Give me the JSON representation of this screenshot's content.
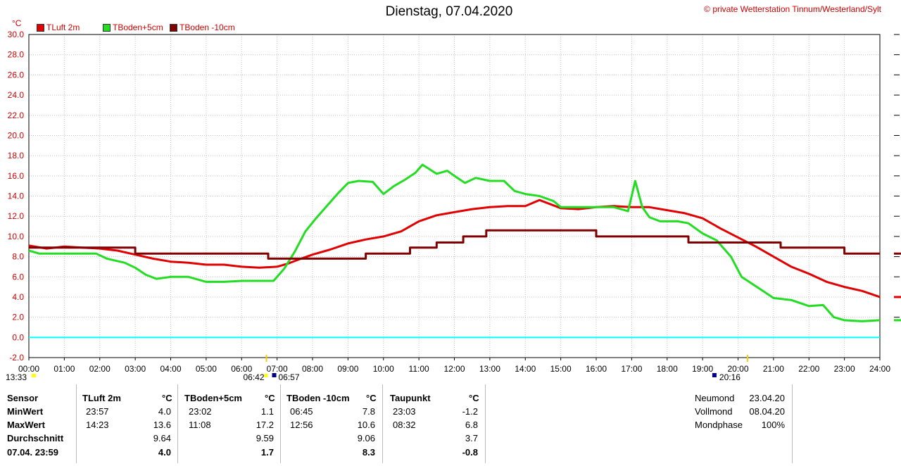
{
  "header": {
    "title": "Dienstag, 07.04.2020",
    "copyright": "© private Wetterstation Tinnum/Westerland/Sylt",
    "unit": "°C"
  },
  "colors": {
    "tluft": "#e00000",
    "tboden5": "#22dd22",
    "tboden10": "#800000",
    "zero_line": "#00ffff",
    "grid": "#c0c0c0"
  },
  "chart_data": {
    "type": "line",
    "ylim": [
      -2,
      30
    ],
    "yticks": [
      "-2.0",
      "0.0",
      "2.0",
      "4.0",
      "6.0",
      "8.0",
      "10.0",
      "12.0",
      "14.0",
      "16.0",
      "18.0",
      "20.0",
      "22.0",
      "24.0",
      "26.0",
      "28.0",
      "30.0"
    ],
    "xlim": [
      0,
      24
    ],
    "xticks": [
      "00:00",
      "01:00",
      "02:00",
      "03:00",
      "04:00",
      "05:00",
      "06:00",
      "07:00",
      "08:00",
      "09:00",
      "10:00",
      "11:00",
      "12:00",
      "13:00",
      "14:00",
      "15:00",
      "16:00",
      "17:00",
      "18:00",
      "19:00",
      "20:00",
      "21:00",
      "22:00",
      "23:00",
      "24:00"
    ],
    "grid": true,
    "legend_position": "top-left",
    "series": [
      {
        "name": "TLuft 2m",
        "color": "#e00000",
        "points": [
          [
            0,
            9.1
          ],
          [
            0.5,
            8.8
          ],
          [
            1,
            9.0
          ],
          [
            1.5,
            8.9
          ],
          [
            2,
            8.8
          ],
          [
            2.5,
            8.6
          ],
          [
            3,
            8.2
          ],
          [
            3.5,
            7.8
          ],
          [
            4,
            7.5
          ],
          [
            4.5,
            7.4
          ],
          [
            5,
            7.2
          ],
          [
            5.5,
            7.2
          ],
          [
            6,
            7.0
          ],
          [
            6.5,
            6.9
          ],
          [
            7,
            7.0
          ],
          [
            7.3,
            7.3
          ],
          [
            7.6,
            7.7
          ],
          [
            8,
            8.2
          ],
          [
            8.5,
            8.7
          ],
          [
            9,
            9.3
          ],
          [
            9.5,
            9.7
          ],
          [
            10,
            10.0
          ],
          [
            10.5,
            10.5
          ],
          [
            11,
            11.5
          ],
          [
            11.5,
            12.1
          ],
          [
            12,
            12.4
          ],
          [
            12.5,
            12.7
          ],
          [
            13,
            12.9
          ],
          [
            13.5,
            13.0
          ],
          [
            14,
            13.0
          ],
          [
            14.4,
            13.6
          ],
          [
            15,
            12.8
          ],
          [
            15.5,
            12.7
          ],
          [
            16,
            12.9
          ],
          [
            16.5,
            13.0
          ],
          [
            17,
            12.9
          ],
          [
            17.5,
            12.9
          ],
          [
            18,
            12.6
          ],
          [
            18.5,
            12.3
          ],
          [
            19,
            11.8
          ],
          [
            19.5,
            10.8
          ],
          [
            20,
            9.9
          ],
          [
            20.5,
            9.0
          ],
          [
            21,
            8.0
          ],
          [
            21.5,
            7.0
          ],
          [
            22,
            6.3
          ],
          [
            22.5,
            5.5
          ],
          [
            23,
            5.0
          ],
          [
            23.5,
            4.6
          ],
          [
            24,
            4.0
          ]
        ]
      },
      {
        "name": "TBoden+5cm",
        "color": "#22dd22",
        "points": [
          [
            0,
            8.6
          ],
          [
            0.3,
            8.3
          ],
          [
            1,
            8.3
          ],
          [
            1.9,
            8.3
          ],
          [
            2.2,
            7.8
          ],
          [
            2.7,
            7.4
          ],
          [
            3,
            6.9
          ],
          [
            3.3,
            6.2
          ],
          [
            3.6,
            5.8
          ],
          [
            4,
            6.0
          ],
          [
            4.5,
            6.0
          ],
          [
            5,
            5.5
          ],
          [
            5.5,
            5.5
          ],
          [
            6,
            5.6
          ],
          [
            6.5,
            5.6
          ],
          [
            6.9,
            5.6
          ],
          [
            7.2,
            6.8
          ],
          [
            7.5,
            8.5
          ],
          [
            7.8,
            10.5
          ],
          [
            8.1,
            11.8
          ],
          [
            8.4,
            13.0
          ],
          [
            8.7,
            14.2
          ],
          [
            9,
            15.3
          ],
          [
            9.3,
            15.5
          ],
          [
            9.7,
            15.4
          ],
          [
            10,
            14.2
          ],
          [
            10.3,
            15.0
          ],
          [
            10.6,
            15.6
          ],
          [
            10.9,
            16.3
          ],
          [
            11.1,
            17.1
          ],
          [
            11.5,
            16.2
          ],
          [
            11.8,
            16.5
          ],
          [
            12,
            16.0
          ],
          [
            12.3,
            15.3
          ],
          [
            12.6,
            15.8
          ],
          [
            13,
            15.5
          ],
          [
            13.4,
            15.5
          ],
          [
            13.7,
            14.5
          ],
          [
            14,
            14.2
          ],
          [
            14.4,
            14.0
          ],
          [
            14.8,
            13.5
          ],
          [
            15,
            12.9
          ],
          [
            15.5,
            12.9
          ],
          [
            16,
            12.9
          ],
          [
            16.5,
            12.9
          ],
          [
            16.9,
            12.5
          ],
          [
            17.1,
            15.5
          ],
          [
            17.3,
            12.9
          ],
          [
            17.5,
            11.9
          ],
          [
            17.8,
            11.5
          ],
          [
            18.3,
            11.5
          ],
          [
            18.6,
            11.3
          ],
          [
            19,
            10.3
          ],
          [
            19.4,
            9.6
          ],
          [
            19.8,
            8.0
          ],
          [
            20.1,
            6.0
          ],
          [
            20.4,
            5.3
          ],
          [
            20.7,
            4.6
          ],
          [
            21,
            3.9
          ],
          [
            21.5,
            3.7
          ],
          [
            22,
            3.1
          ],
          [
            22.4,
            3.2
          ],
          [
            22.7,
            2.0
          ],
          [
            23,
            1.7
          ],
          [
            23.5,
            1.6
          ],
          [
            24,
            1.7
          ]
        ]
      },
      {
        "name": "TBoden -10cm",
        "color": "#800000",
        "points": [
          [
            0,
            8.9
          ],
          [
            3,
            8.9
          ],
          [
            3,
            8.3
          ],
          [
            6.75,
            8.3
          ],
          [
            6.75,
            7.8
          ],
          [
            9.5,
            7.8
          ],
          [
            9.5,
            8.3
          ],
          [
            10.75,
            8.3
          ],
          [
            10.75,
            8.9
          ],
          [
            11.5,
            8.9
          ],
          [
            11.5,
            9.4
          ],
          [
            12.25,
            9.4
          ],
          [
            12.25,
            10.0
          ],
          [
            12.9,
            10.0
          ],
          [
            12.9,
            10.6
          ],
          [
            16,
            10.6
          ],
          [
            16,
            10.0
          ],
          [
            18.6,
            10.0
          ],
          [
            18.6,
            9.4
          ],
          [
            21.2,
            9.4
          ],
          [
            21.2,
            8.9
          ],
          [
            23,
            8.9
          ],
          [
            23,
            8.3
          ],
          [
            24,
            8.3
          ]
        ]
      }
    ]
  },
  "sun_markers": {
    "left_time": "13:33",
    "sunrise_1": "06:42",
    "sunrise_2": "06:57",
    "sunset": "20:16"
  },
  "stats": {
    "headers": {
      "sensor": "Sensor",
      "tluft": "TLuft 2m",
      "tboden5": "TBoden+5cm",
      "tboden10": "TBoden -10cm",
      "taupunkt": "Taupunkt",
      "unit": "°C"
    },
    "rows": [
      {
        "label": "MinWert",
        "tluft": {
          "time": "23:57",
          "value": "4.0"
        },
        "tboden5": {
          "time": "23:02",
          "value": "1.1"
        },
        "tboden10": {
          "time": "06:45",
          "value": "7.8"
        },
        "taupunkt": {
          "time": "23:03",
          "value": "-1.2"
        }
      },
      {
        "label": "MaxWert",
        "tluft": {
          "time": "14:23",
          "value": "13.6"
        },
        "tboden5": {
          "time": "11:08",
          "value": "17.2"
        },
        "tboden10": {
          "time": "12:56",
          "value": "10.6"
        },
        "taupunkt": {
          "time": "08:32",
          "value": "6.8"
        }
      },
      {
        "label": "Durchschnitt",
        "tluft": {
          "time": "",
          "value": "9.64"
        },
        "tboden5": {
          "time": "",
          "value": "9.59"
        },
        "tboden10": {
          "time": "",
          "value": "9.06"
        },
        "taupunkt": {
          "time": "",
          "value": "3.7"
        }
      },
      {
        "label": "07.04. 23:59",
        "tluft": {
          "time": "",
          "value": "4.0"
        },
        "tboden5": {
          "time": "",
          "value": "1.7"
        },
        "tboden10": {
          "time": "",
          "value": "8.3"
        },
        "taupunkt": {
          "time": "",
          "value": "-0.8"
        }
      }
    ],
    "moon": [
      {
        "label": "Neumond",
        "value": "23.04.20"
      },
      {
        "label": "Vollmond",
        "value": "08.04.20"
      },
      {
        "label": "Mondphase",
        "value": "100%"
      }
    ]
  }
}
